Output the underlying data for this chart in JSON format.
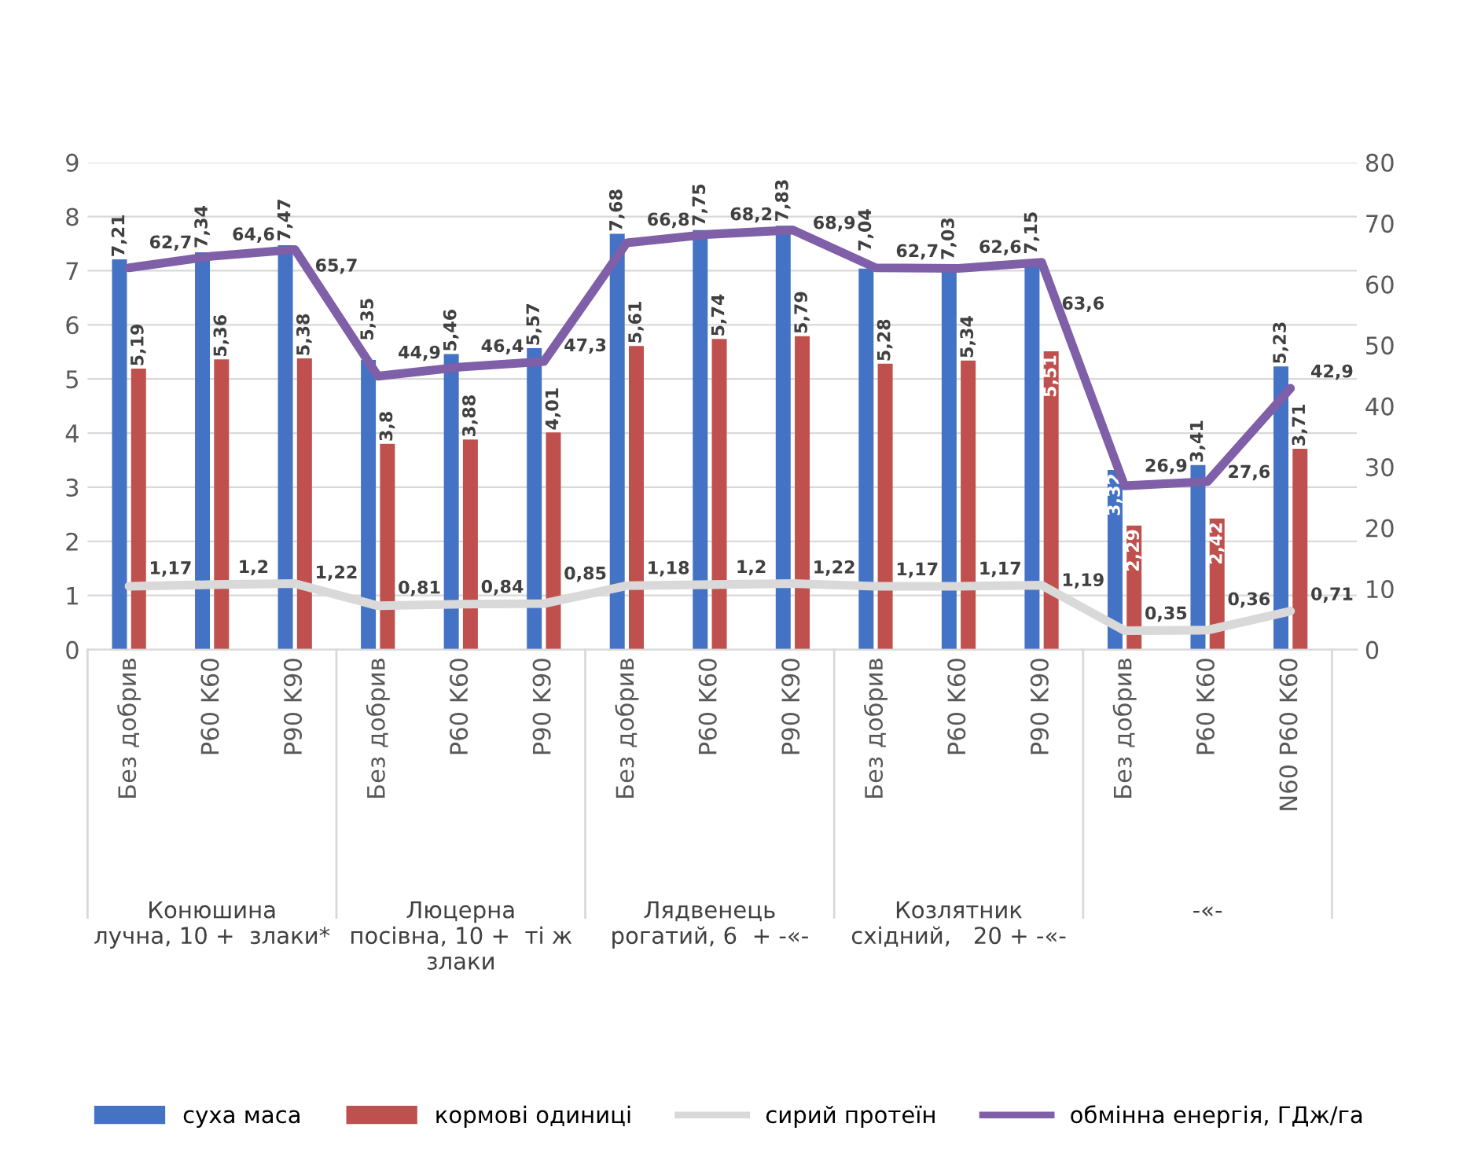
{
  "chart_data": {
    "type": "bar",
    "categories": [
      "Без добрив",
      "P60 K60",
      "P90 K90",
      "Без добрив",
      "P60 K60",
      "P90 K90",
      "Без добрив",
      "P60 K60",
      "P90 K90",
      "Без добрив",
      "P60 K60",
      "P90 K90",
      "Без добрив",
      "P60 K60",
      "N60 P60 K60"
    ],
    "annotations": [
      "Конюшина\nлучна, 10 +  злаки*",
      "Люцерна\nпосівна, 10 +  ті ж\nзлаки",
      "Лядвенець\nрогатий, 6  + -«-",
      "Козлятник\nсхідний,   20 + -«-",
      "-«-"
    ],
    "series": [
      {
        "name": "суха маса",
        "color": "#4472c4",
        "values": [
          7.21,
          7.34,
          7.47,
          5.35,
          5.46,
          5.57,
          7.68,
          7.75,
          7.83,
          7.04,
          7.03,
          7.15,
          3.32,
          3.41,
          5.23
        ],
        "value_labels": [
          "7,21",
          "7,34",
          "7,47",
          "5,35",
          "5,46",
          "5,57",
          "7,68",
          "7,75",
          "7,83",
          "7,04",
          "7,03",
          "7,15",
          "3,32",
          "3,41",
          "5,23"
        ]
      },
      {
        "name": "кормові одиниці",
        "color": "#c0504d",
        "values": [
          5.19,
          5.36,
          5.38,
          3.8,
          3.88,
          4.01,
          5.61,
          5.74,
          5.79,
          5.28,
          5.34,
          5.51,
          2.29,
          2.42,
          3.71
        ],
        "value_labels": [
          "5,19",
          "5,36",
          "5,38",
          "3,8",
          "3,88",
          "4,01",
          "5,61",
          "5,74",
          "5,79",
          "5,28",
          "5,34",
          "5,51",
          "2,29",
          "2,42",
          "3,71"
        ]
      },
      {
        "name": "сирий протеїн",
        "type": "line",
        "color": "#d9d9d9",
        "values": [
          1.17,
          1.2,
          1.22,
          0.81,
          0.84,
          0.85,
          1.18,
          1.2,
          1.22,
          1.17,
          1.17,
          1.19,
          0.35,
          0.36,
          0.71
        ],
        "value_labels": [
          "1,17",
          "1,2",
          "1,22",
          "0,81",
          "0,84",
          "0,85",
          "1,18",
          "1,2",
          "1,22",
          "1,17",
          "1,17",
          "1,19",
          "0,35",
          "0,36",
          "0,71"
        ]
      },
      {
        "name": "обмінна енергія, ГДж/га",
        "type": "line",
        "axis": "y2",
        "color": "#7f5fa8",
        "values": [
          62.7,
          64.6,
          65.7,
          44.9,
          46.4,
          47.3,
          66.8,
          68.2,
          68.9,
          62.7,
          62.6,
          63.6,
          26.9,
          27.6,
          42.9
        ],
        "value_labels": [
          "62,7",
          "64,6",
          "65,7",
          "44,9",
          "46,4",
          "47,3",
          "66,8",
          "68,2",
          "68,9",
          "62,7",
          "62,6",
          "63,6",
          "26,9",
          "27,6",
          "42,9"
        ]
      }
    ],
    "ylim": [
      0,
      9
    ],
    "yticks": [
      0,
      1,
      2,
      3,
      4,
      5,
      6,
      7,
      8,
      9
    ],
    "y2lim": [
      0,
      80
    ],
    "y2ticks": [
      0,
      10,
      20,
      30,
      40,
      50,
      60,
      70,
      80
    ],
    "grid": "y",
    "legend": "bottom"
  }
}
